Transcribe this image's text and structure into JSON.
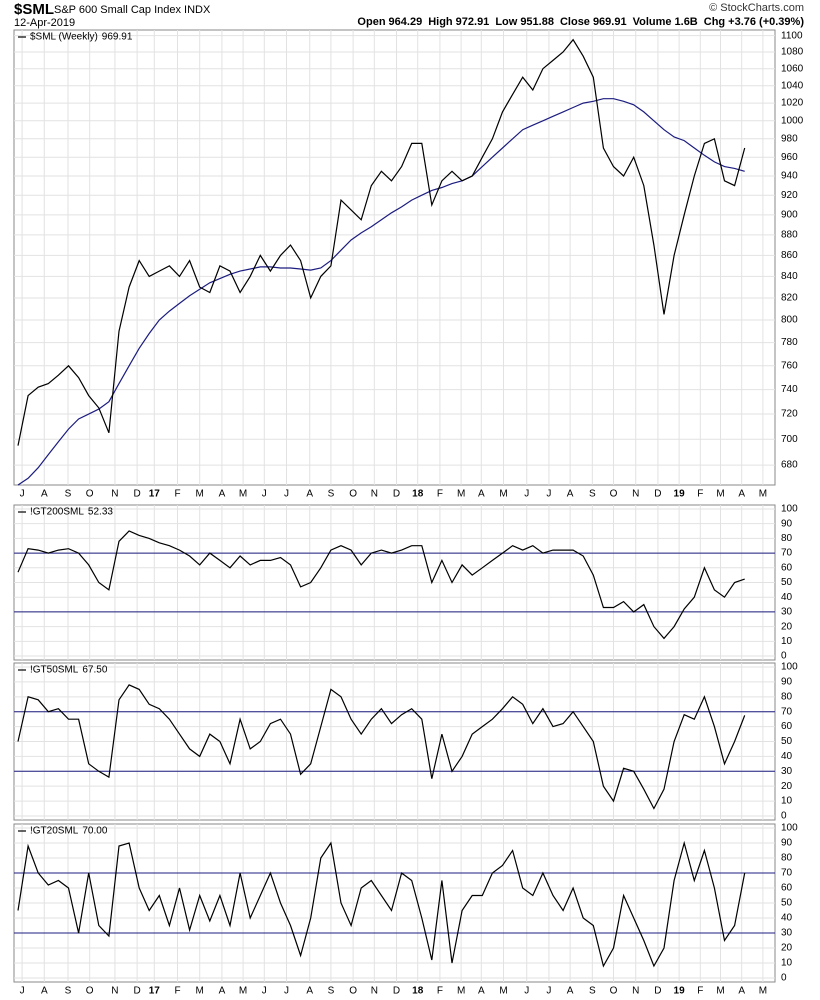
{
  "header": {
    "symbol": "$SML",
    "name": "S&P 600 Small Cap Index",
    "exchange": "INDX",
    "date": "12-Apr-2019",
    "credit": "© StockCharts.com",
    "stats": [
      {
        "label": "Open",
        "value": 964.29
      },
      {
        "label": "High",
        "value": 972.91
      },
      {
        "label": "Low",
        "value": 951.88
      },
      {
        "label": "Close",
        "value": 969.91
      },
      {
        "label": "Volume",
        "value": "1.6B"
      },
      {
        "label": "Chg",
        "value": "+3.76 (+0.39%)"
      }
    ]
  },
  "chart_data": [
    {
      "type": "line",
      "label": "$SML (Weekly)",
      "last": 969.91,
      "log": true,
      "grid": true,
      "xlim": [
        -0.4,
        75
      ],
      "ylim": [
        665,
        1107
      ],
      "yticks": [
        680,
        700,
        720,
        740,
        760,
        780,
        800,
        820,
        840,
        860,
        880,
        900,
        920,
        940,
        960,
        980,
        1000,
        1020,
        1040,
        1060,
        1080,
        1100
      ],
      "xticks": [
        {
          "value": 0.4,
          "label": "J"
        },
        {
          "value": 2.6,
          "label": "A"
        },
        {
          "value": 4.95,
          "label": "S"
        },
        {
          "value": 7.1,
          "label": "O"
        },
        {
          "value": 9.6,
          "label": "N"
        },
        {
          "value": 11.8,
          "label": "D"
        },
        {
          "value": 13.5,
          "label": "17"
        },
        {
          "value": 15.8,
          "label": "F"
        },
        {
          "value": 18,
          "label": "M"
        },
        {
          "value": 20.2,
          "label": "A"
        },
        {
          "value": 22.3,
          "label": "M"
        },
        {
          "value": 24.4,
          "label": "J"
        },
        {
          "value": 26.6,
          "label": "J"
        },
        {
          "value": 28.9,
          "label": "A"
        },
        {
          "value": 31,
          "label": "S"
        },
        {
          "value": 33.2,
          "label": "O"
        },
        {
          "value": 35.3,
          "label": "N"
        },
        {
          "value": 37.5,
          "label": "D"
        },
        {
          "value": 39.6,
          "label": "18"
        },
        {
          "value": 41.8,
          "label": "F"
        },
        {
          "value": 43.9,
          "label": "M"
        },
        {
          "value": 45.9,
          "label": "A"
        },
        {
          "value": 48.1,
          "label": "M"
        },
        {
          "value": 50.4,
          "label": "J"
        },
        {
          "value": 52.6,
          "label": "J"
        },
        {
          "value": 54.7,
          "label": "A"
        },
        {
          "value": 56.9,
          "label": "S"
        },
        {
          "value": 59,
          "label": "O"
        },
        {
          "value": 61.2,
          "label": "N"
        },
        {
          "value": 63.4,
          "label": "D"
        },
        {
          "value": 65.5,
          "label": "19"
        },
        {
          "value": 67.6,
          "label": "F"
        },
        {
          "value": 69.6,
          "label": "M"
        },
        {
          "value": 71.7,
          "label": "A"
        },
        {
          "value": 73.8,
          "label": "M"
        }
      ],
      "series": [
        {
          "color": "#1c1c80",
          "values": [
            665,
            670,
            678,
            688,
            698,
            708,
            716,
            720,
            724,
            730,
            745,
            760,
            775,
            788,
            800,
            808,
            815,
            822,
            828,
            834,
            838,
            842,
            845,
            847,
            849,
            849,
            848,
            848,
            847,
            846,
            848,
            855,
            865,
            875,
            882,
            888,
            895,
            902,
            908,
            915,
            920,
            925,
            928,
            932,
            935,
            940,
            950,
            960,
            970,
            980,
            990,
            995,
            1000,
            1005,
            1010,
            1015,
            1020,
            1022,
            1025,
            1025,
            1022,
            1018,
            1010,
            1000,
            990,
            982,
            978,
            970,
            962,
            955,
            950,
            948,
            945
          ]
        },
        {
          "color": "#000000",
          "values": [
            695,
            735,
            742,
            745,
            752,
            760,
            750,
            735,
            725,
            705,
            790,
            830,
            855,
            840,
            845,
            850,
            840,
            855,
            830,
            825,
            850,
            845,
            825,
            840,
            860,
            845,
            860,
            870,
            855,
            820,
            840,
            850,
            915,
            905,
            895,
            930,
            945,
            935,
            950,
            975,
            975,
            910,
            935,
            945,
            935,
            940,
            960,
            980,
            1010,
            1030,
            1050,
            1035,
            1060,
            1070,
            1080,
            1095,
            1075,
            1050,
            970,
            950,
            940,
            960,
            930,
            870,
            805,
            860,
            900,
            940,
            975,
            980,
            935,
            930,
            969.91
          ]
        }
      ]
    },
    {
      "type": "line",
      "label": "!GT200SML",
      "last": 52.33,
      "grid": true,
      "hlines": [
        30,
        70
      ],
      "hline_color": "#1c1c80",
      "xlim": [
        -0.4,
        75
      ],
      "ylim": [
        -2.7,
        102.7
      ],
      "yticks": [
        0,
        10,
        20,
        30,
        40,
        50,
        60,
        70,
        80,
        90,
        100
      ],
      "series": [
        {
          "color": "#000000",
          "values": [
            57,
            73,
            72,
            70,
            72,
            73,
            70,
            62,
            50,
            45,
            78,
            85,
            82,
            80,
            77,
            75,
            72,
            68,
            62,
            70,
            65,
            60,
            68,
            62,
            65,
            65,
            67,
            62,
            47,
            50,
            60,
            72,
            75,
            72,
            62,
            70,
            72,
            70,
            72,
            75,
            75,
            50,
            65,
            50,
            62,
            55,
            60,
            65,
            70,
            75,
            72,
            75,
            70,
            72,
            72,
            72,
            68,
            55,
            33,
            33,
            37,
            30,
            35,
            20,
            12,
            20,
            32,
            40,
            60,
            45,
            40,
            50,
            52.33
          ]
        }
      ]
    },
    {
      "type": "line",
      "label": "!GT50SML",
      "last": {
        "value": 67.5,
        "label": "67.50"
      },
      "grid": true,
      "hlines": [
        30,
        70
      ],
      "hline_color": "#1c1c80",
      "xlim": [
        -0.4,
        75
      ],
      "ylim": [
        -2.7,
        102.7
      ],
      "yticks": [
        0,
        10,
        20,
        30,
        40,
        50,
        60,
        70,
        80,
        90,
        100
      ],
      "series": [
        {
          "color": "#000000",
          "values": [
            50,
            80,
            78,
            70,
            72,
            65,
            65,
            35,
            30,
            26,
            78,
            88,
            85,
            75,
            72,
            65,
            55,
            45,
            40,
            55,
            50,
            35,
            65,
            45,
            50,
            62,
            65,
            55,
            28,
            35,
            60,
            85,
            80,
            65,
            55,
            65,
            72,
            62,
            68,
            72,
            65,
            25,
            55,
            30,
            40,
            55,
            60,
            65,
            72,
            80,
            75,
            62,
            72,
            60,
            62,
            70,
            60,
            50,
            20,
            10,
            32,
            30,
            18,
            5,
            18,
            50,
            68,
            65,
            80,
            60,
            35,
            50,
            67.5
          ]
        }
      ]
    },
    {
      "type": "line",
      "label": "!GT20SML",
      "last": {
        "value": 70,
        "label": "70.00"
      },
      "grid": true,
      "hlines": [
        30,
        70
      ],
      "hline_color": "#1c1c80",
      "xlim": [
        -0.4,
        75
      ],
      "ylim": [
        -2.7,
        102.7
      ],
      "yticks": [
        0,
        10,
        20,
        30,
        40,
        50,
        60,
        70,
        80,
        90,
        100
      ],
      "xticks": [
        {
          "value": 0.4,
          "label": "J"
        },
        {
          "value": 2.6,
          "label": "A"
        },
        {
          "value": 4.95,
          "label": "S"
        },
        {
          "value": 7.1,
          "label": "O"
        },
        {
          "value": 9.6,
          "label": "N"
        },
        {
          "value": 11.8,
          "label": "D"
        },
        {
          "value": 13.5,
          "label": "17"
        },
        {
          "value": 15.8,
          "label": "F"
        },
        {
          "value": 18,
          "label": "M"
        },
        {
          "value": 20.2,
          "label": "A"
        },
        {
          "value": 22.3,
          "label": "M"
        },
        {
          "value": 24.4,
          "label": "J"
        },
        {
          "value": 26.6,
          "label": "J"
        },
        {
          "value": 28.9,
          "label": "A"
        },
        {
          "value": 31,
          "label": "S"
        },
        {
          "value": 33.2,
          "label": "O"
        },
        {
          "value": 35.3,
          "label": "N"
        },
        {
          "value": 37.5,
          "label": "D"
        },
        {
          "value": 39.6,
          "label": "18"
        },
        {
          "value": 41.8,
          "label": "F"
        },
        {
          "value": 43.9,
          "label": "M"
        },
        {
          "value": 45.9,
          "label": "A"
        },
        {
          "value": 48.1,
          "label": "M"
        },
        {
          "value": 50.4,
          "label": "J"
        },
        {
          "value": 52.6,
          "label": "J"
        },
        {
          "value": 54.7,
          "label": "A"
        },
        {
          "value": 56.9,
          "label": "S"
        },
        {
          "value": 59,
          "label": "O"
        },
        {
          "value": 61.2,
          "label": "N"
        },
        {
          "value": 63.4,
          "label": "D"
        },
        {
          "value": 65.5,
          "label": "19"
        },
        {
          "value": 67.6,
          "label": "F"
        },
        {
          "value": 69.6,
          "label": "M"
        },
        {
          "value": 71.7,
          "label": "A"
        },
        {
          "value": 73.8,
          "label": "M"
        }
      ],
      "series": [
        {
          "color": "#000000",
          "values": [
            45,
            88,
            70,
            62,
            65,
            60,
            30,
            70,
            35,
            28,
            88,
            90,
            60,
            45,
            55,
            35,
            60,
            32,
            55,
            38,
            55,
            35,
            70,
            40,
            55,
            70,
            50,
            35,
            15,
            40,
            80,
            90,
            50,
            35,
            60,
            65,
            55,
            45,
            70,
            65,
            40,
            12,
            65,
            10,
            45,
            55,
            55,
            70,
            75,
            85,
            60,
            55,
            70,
            55,
            45,
            60,
            40,
            35,
            8,
            20,
            55,
            40,
            25,
            8,
            20,
            65,
            90,
            65,
            85,
            60,
            25,
            35,
            70
          ]
        }
      ]
    }
  ]
}
